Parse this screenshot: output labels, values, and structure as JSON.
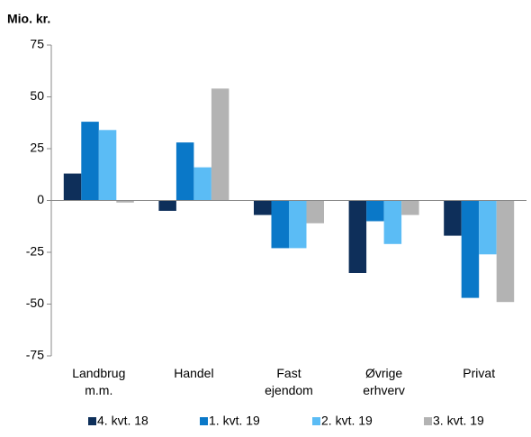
{
  "chart_data": {
    "type": "bar",
    "title": "Mio. kr.",
    "categories": [
      "Landbrug\nm.m.",
      "Handel",
      "Fast\nejendom",
      "Øvrige\nerhverv",
      "Privat"
    ],
    "series": [
      {
        "name": "4. kvt. 18",
        "color": "#0e2f5a",
        "values": [
          13,
          -5,
          -7,
          -35,
          -17
        ]
      },
      {
        "name": "1. kvt. 19",
        "color": "#0a78c8",
        "values": [
          38,
          28,
          -23,
          -10,
          -47
        ]
      },
      {
        "name": "2. kvt. 19",
        "color": "#5bbcf5",
        "values": [
          34,
          16,
          -23,
          -21,
          -26
        ]
      },
      {
        "name": "3. kvt. 19",
        "color": "#b3b3b3",
        "values": [
          -1,
          54,
          -11,
          -7,
          -49
        ]
      }
    ],
    "ylim": [
      -75,
      75
    ],
    "yticks": [
      -75,
      -50,
      -25,
      0,
      25,
      50,
      75
    ],
    "legend": "bottom"
  }
}
